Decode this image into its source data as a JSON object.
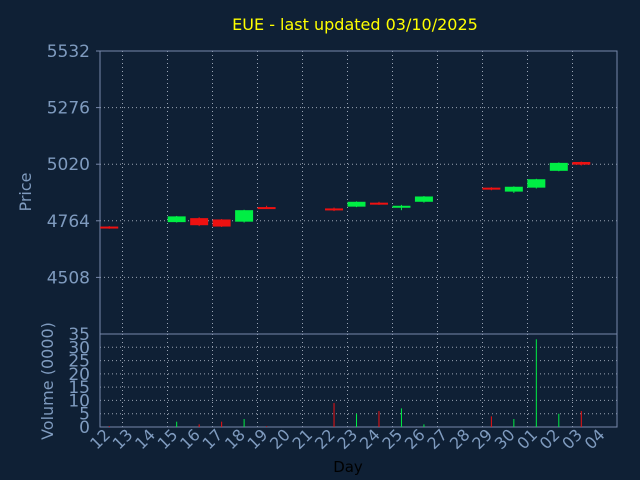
{
  "chart_data": {
    "type": "candlestick",
    "title": "EUE - last updated 03/10/2025",
    "xlabel": "Day",
    "price_panel": {
      "ylabel": "Price",
      "ylim": [
        4252,
        5532
      ],
      "yticks": [
        "5532",
        "5276",
        "5020",
        "4764",
        "4508"
      ],
      "grid": true
    },
    "volume_panel": {
      "ylabel": "Volume (0000)",
      "ylim": [
        0,
        35
      ],
      "yticks": [
        "35",
        "30",
        "25",
        "20",
        "15",
        "10",
        "5",
        "0"
      ],
      "grid": true
    },
    "x_tick_labels": [
      "12",
      "13",
      "14",
      "15",
      "16",
      "17",
      "18",
      "19",
      "20",
      "21",
      "22",
      "23",
      "24",
      "25",
      "26",
      "27",
      "28",
      "29",
      "30",
      "01",
      "02",
      "03",
      "04"
    ],
    "candles": [
      {
        "day": "12",
        "open": 4738,
        "close": 4730,
        "high": 4740,
        "low": 4728,
        "volume": 0.3
      },
      {
        "day": "15",
        "open": 4758,
        "close": 4784,
        "high": 4786,
        "low": 4756,
        "volume": 2
      },
      {
        "day": "16",
        "open": 4776,
        "close": 4744,
        "high": 4780,
        "low": 4740,
        "volume": 1
      },
      {
        "day": "17",
        "open": 4770,
        "close": 4738,
        "high": 4772,
        "low": 4736,
        "volume": 2
      },
      {
        "day": "18",
        "open": 4760,
        "close": 4812,
        "high": 4814,
        "low": 4756,
        "volume": 3
      },
      {
        "day": "19",
        "open": 4826,
        "close": 4822,
        "high": 4832,
        "low": 4818,
        "volume": 0.3
      },
      {
        "day": "22",
        "open": 4820,
        "close": 4812,
        "high": 4824,
        "low": 4808,
        "volume": 9
      },
      {
        "day": "23",
        "open": 4828,
        "close": 4850,
        "high": 4852,
        "low": 4826,
        "volume": 5
      },
      {
        "day": "24",
        "open": 4846,
        "close": 4840,
        "high": 4850,
        "low": 4836,
        "volume": 6
      },
      {
        "day": "25",
        "open": 4828,
        "close": 4832,
        "high": 4836,
        "low": 4812,
        "volume": 7
      },
      {
        "day": "26",
        "open": 4850,
        "close": 4874,
        "high": 4876,
        "low": 4846,
        "volume": 1
      },
      {
        "day": "29",
        "open": 4914,
        "close": 4906,
        "high": 4916,
        "low": 4902,
        "volume": 4
      },
      {
        "day": "30",
        "open": 4896,
        "close": 4918,
        "high": 4920,
        "low": 4890,
        "volume": 3
      },
      {
        "day": "01",
        "open": 4914,
        "close": 4952,
        "high": 4954,
        "low": 4910,
        "volume": 33
      },
      {
        "day": "02",
        "open": 4990,
        "close": 5026,
        "high": 5028,
        "low": 4988,
        "volume": 5
      },
      {
        "day": "03",
        "open": 5030,
        "close": 5018,
        "high": 5032,
        "low": 5014,
        "volume": 6
      }
    ],
    "colors": {
      "background": "#0f2035",
      "up": "#00ee44",
      "down": "#ee1111",
      "axis": "#7788aa",
      "grid": "#9aa4b4",
      "label": "#7f9bbf",
      "title": "#ffff00"
    }
  }
}
